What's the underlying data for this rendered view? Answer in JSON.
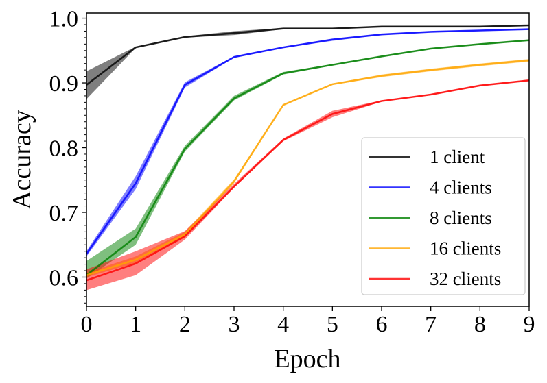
{
  "chart_data": {
    "type": "line",
    "title": "",
    "xlabel": "Epoch",
    "ylabel": "Accuracy",
    "x": [
      0,
      1,
      2,
      3,
      4,
      5,
      6,
      7,
      8,
      9
    ],
    "xlim": [
      0,
      9
    ],
    "ylim": [
      0.555,
      1.008
    ],
    "xticks": [
      "0",
      "1",
      "2",
      "3",
      "4",
      "5",
      "6",
      "7",
      "8",
      "9"
    ],
    "yticks": [
      {
        "value": 0.6,
        "label": "0.6"
      },
      {
        "value": 0.7,
        "label": "0.7"
      },
      {
        "value": 0.8,
        "label": "0.8"
      },
      {
        "value": 0.9,
        "label": "0.9"
      },
      {
        "value": 1.0,
        "label": "1.0"
      }
    ],
    "grid": false,
    "legend_position": "lower-right",
    "series": [
      {
        "name": "1 client",
        "color": "#000000",
        "values": [
          0.897,
          0.955,
          0.971,
          0.977,
          0.984,
          0.984,
          0.987,
          0.987,
          0.987,
          0.989
        ],
        "lower": [
          0.875,
          0.954,
          0.97,
          0.974,
          0.983,
          0.983,
          0.986,
          0.986,
          0.986,
          0.988
        ],
        "upper": [
          0.918,
          0.956,
          0.972,
          0.98,
          0.985,
          0.985,
          0.988,
          0.988,
          0.988,
          0.99
        ]
      },
      {
        "name": "4 clients",
        "color": "#0000ff",
        "values": [
          0.636,
          0.745,
          0.897,
          0.94,
          0.955,
          0.967,
          0.975,
          0.979,
          0.981,
          0.983
        ],
        "lower": [
          0.632,
          0.736,
          0.893,
          0.939,
          0.954,
          0.965,
          0.974,
          0.978,
          0.98,
          0.982
        ],
        "upper": [
          0.64,
          0.756,
          0.901,
          0.941,
          0.956,
          0.968,
          0.976,
          0.98,
          0.982,
          0.984
        ]
      },
      {
        "name": "8 clients",
        "color": "#008000",
        "values": [
          0.603,
          0.662,
          0.798,
          0.876,
          0.915,
          0.928,
          0.941,
          0.953,
          0.96,
          0.966
        ],
        "lower": [
          0.598,
          0.65,
          0.794,
          0.873,
          0.913,
          0.927,
          0.94,
          0.952,
          0.959,
          0.965
        ],
        "upper": [
          0.625,
          0.675,
          0.803,
          0.88,
          0.917,
          0.929,
          0.942,
          0.954,
          0.961,
          0.967
        ]
      },
      {
        "name": "16 clients",
        "color": "#ffa500",
        "values": [
          0.603,
          0.627,
          0.666,
          0.748,
          0.866,
          0.898,
          0.911,
          0.92,
          0.928,
          0.935
        ],
        "lower": [
          0.6,
          0.622,
          0.662,
          0.745,
          0.865,
          0.897,
          0.909,
          0.918,
          0.926,
          0.933
        ],
        "upper": [
          0.607,
          0.632,
          0.67,
          0.751,
          0.867,
          0.899,
          0.913,
          0.922,
          0.93,
          0.937
        ]
      },
      {
        "name": "32 clients",
        "color": "#ff0000",
        "values": [
          0.595,
          0.621,
          0.663,
          0.74,
          0.812,
          0.852,
          0.872,
          0.882,
          0.896,
          0.904
        ],
        "lower": [
          0.58,
          0.603,
          0.658,
          0.738,
          0.81,
          0.847,
          0.871,
          0.881,
          0.895,
          0.903
        ],
        "upper": [
          0.612,
          0.64,
          0.671,
          0.744,
          0.814,
          0.857,
          0.873,
          0.883,
          0.897,
          0.905
        ]
      }
    ]
  }
}
